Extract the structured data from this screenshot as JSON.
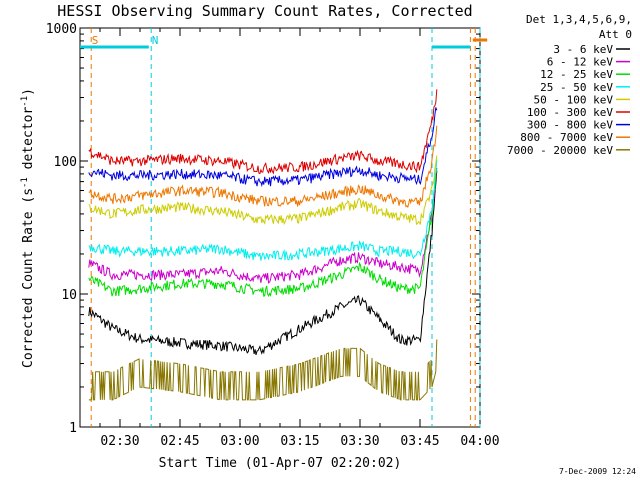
{
  "chart_data": {
    "type": "line",
    "title": "HESSI Observing Summary Count Rates, Corrected",
    "xlabel": "Start Time (01-Apr-07 02:20:02)",
    "ylabel_main": "Corrected Count Rate (s",
    "ylabel_sup1": "-1",
    "ylabel_mid": " detector",
    "ylabel_sup2": "-1",
    "ylabel_end": ")",
    "y_scale": "log",
    "ylim": [
      1,
      1000
    ],
    "xlim": [
      "02:20",
      "04:00"
    ],
    "x_ticks": [
      "02:30",
      "02:45",
      "03:00",
      "03:15",
      "03:30",
      "03:45",
      "04:00"
    ],
    "y_ticks": [
      "1",
      "10",
      "100",
      "1000"
    ],
    "grid": false,
    "legend_header": [
      "Det 1,3,4,5,6,9,",
      "Att 0"
    ],
    "legend_position": "right",
    "footer_date": "7-Dec-2009 12:24",
    "series": [
      {
        "name": "3 - 6 keV",
        "color": "#000000",
        "values": [
          [
            2.37,
            7.5
          ],
          [
            2.47,
            5.5
          ],
          [
            2.58,
            4.6
          ],
          [
            2.75,
            4.3
          ],
          [
            2.92,
            4.1
          ],
          [
            3.08,
            3.7
          ],
          [
            3.25,
            5.5
          ],
          [
            3.42,
            8.0
          ],
          [
            3.5,
            9.0
          ],
          [
            3.58,
            6.5
          ],
          [
            3.67,
            4.5
          ],
          [
            3.75,
            4.5
          ],
          [
            3.8,
            30
          ],
          [
            3.82,
            80
          ]
        ]
      },
      {
        "name": "6 - 12 keV",
        "color": "#cc00cc",
        "values": [
          [
            2.37,
            17
          ],
          [
            2.47,
            14
          ],
          [
            2.58,
            14
          ],
          [
            2.75,
            14
          ],
          [
            2.92,
            15
          ],
          [
            3.08,
            13
          ],
          [
            3.25,
            14
          ],
          [
            3.42,
            18
          ],
          [
            3.5,
            19
          ],
          [
            3.58,
            17
          ],
          [
            3.67,
            16
          ],
          [
            3.75,
            15
          ],
          [
            3.8,
            40
          ],
          [
            3.82,
            90
          ]
        ]
      },
      {
        "name": "12 - 25 keV",
        "color": "#00dd00",
        "values": [
          [
            2.37,
            13
          ],
          [
            2.47,
            10.5
          ],
          [
            2.58,
            11
          ],
          [
            2.75,
            12
          ],
          [
            2.92,
            12
          ],
          [
            3.08,
            10.5
          ],
          [
            3.25,
            11
          ],
          [
            3.42,
            14
          ],
          [
            3.5,
            16
          ],
          [
            3.58,
            13
          ],
          [
            3.67,
            11
          ],
          [
            3.75,
            11
          ],
          [
            3.8,
            40
          ],
          [
            3.82,
            90
          ]
        ]
      },
      {
        "name": "25 - 50 keV",
        "color": "#00eeee",
        "values": [
          [
            2.37,
            23
          ],
          [
            2.47,
            21
          ],
          [
            2.58,
            21
          ],
          [
            2.75,
            21
          ],
          [
            2.92,
            22
          ],
          [
            3.08,
            19
          ],
          [
            3.25,
            20
          ],
          [
            3.42,
            22
          ],
          [
            3.5,
            23
          ],
          [
            3.58,
            21
          ],
          [
            3.67,
            21
          ],
          [
            3.75,
            20
          ],
          [
            3.8,
            45
          ],
          [
            3.82,
            95
          ]
        ]
      },
      {
        "name": "50 - 100 keV",
        "color": "#cccc00",
        "values": [
          [
            2.37,
            45
          ],
          [
            2.47,
            40
          ],
          [
            2.58,
            43
          ],
          [
            2.75,
            45
          ],
          [
            2.92,
            42
          ],
          [
            3.08,
            36
          ],
          [
            3.25,
            37
          ],
          [
            3.42,
            45
          ],
          [
            3.5,
            48
          ],
          [
            3.58,
            42
          ],
          [
            3.67,
            38
          ],
          [
            3.75,
            36
          ],
          [
            3.8,
            60
          ],
          [
            3.82,
            110
          ]
        ]
      },
      {
        "name": "100 - 300 keV",
        "color": "#dd0000",
        "values": [
          [
            2.37,
            120
          ],
          [
            2.47,
            100
          ],
          [
            2.58,
            100
          ],
          [
            2.75,
            105
          ],
          [
            2.92,
            100
          ],
          [
            3.08,
            88
          ],
          [
            3.25,
            90
          ],
          [
            3.42,
            105
          ],
          [
            3.5,
            110
          ],
          [
            3.58,
            100
          ],
          [
            3.67,
            95
          ],
          [
            3.75,
            90
          ],
          [
            3.8,
            200
          ],
          [
            3.82,
            330
          ]
        ]
      },
      {
        "name": "300 - 800 keV",
        "color": "#0000dd",
        "values": [
          [
            2.37,
            85
          ],
          [
            2.47,
            78
          ],
          [
            2.58,
            78
          ],
          [
            2.75,
            80
          ],
          [
            2.92,
            78
          ],
          [
            3.08,
            70
          ],
          [
            3.25,
            72
          ],
          [
            3.42,
            82
          ],
          [
            3.5,
            86
          ],
          [
            3.58,
            78
          ],
          [
            3.67,
            75
          ],
          [
            3.75,
            72
          ],
          [
            3.8,
            160
          ],
          [
            3.82,
            260
          ]
        ]
      },
      {
        "name": "800 - 7000 keV",
        "color": "#ee7700",
        "values": [
          [
            2.37,
            58
          ],
          [
            2.47,
            52
          ],
          [
            2.58,
            55
          ],
          [
            2.75,
            60
          ],
          [
            2.92,
            58
          ],
          [
            3.08,
            50
          ],
          [
            3.25,
            50
          ],
          [
            3.42,
            58
          ],
          [
            3.5,
            62
          ],
          [
            3.58,
            55
          ],
          [
            3.67,
            50
          ],
          [
            3.75,
            48
          ],
          [
            3.8,
            100
          ],
          [
            3.82,
            180
          ]
        ]
      },
      {
        "name": "7000 - 20000 keV",
        "color": "#887700",
        "values": [
          [
            2.37,
            2.0
          ],
          [
            2.47,
            2.0
          ],
          [
            2.58,
            2.5
          ],
          [
            2.75,
            2.3
          ],
          [
            2.92,
            2.0
          ],
          [
            3.08,
            2.0
          ],
          [
            3.25,
            2.3
          ],
          [
            3.42,
            3.0
          ],
          [
            3.5,
            3.0
          ],
          [
            3.58,
            2.3
          ],
          [
            3.67,
            2.0
          ],
          [
            3.75,
            2.0
          ],
          [
            3.8,
            2.5
          ],
          [
            3.82,
            3.5
          ]
        ]
      }
    ],
    "annotations": [
      {
        "label": "S",
        "color": "#ee7700",
        "x": 2.37
      },
      {
        "label": "N",
        "color": "#00ccdd",
        "x": 2.62
      }
    ],
    "markers_dashed": [
      {
        "color": "#ee7700",
        "x": [
          2.38,
          3.96,
          3.98
        ]
      },
      {
        "color": "#00ccdd",
        "x": [
          2.63,
          3.8,
          4.0
        ]
      }
    ]
  }
}
